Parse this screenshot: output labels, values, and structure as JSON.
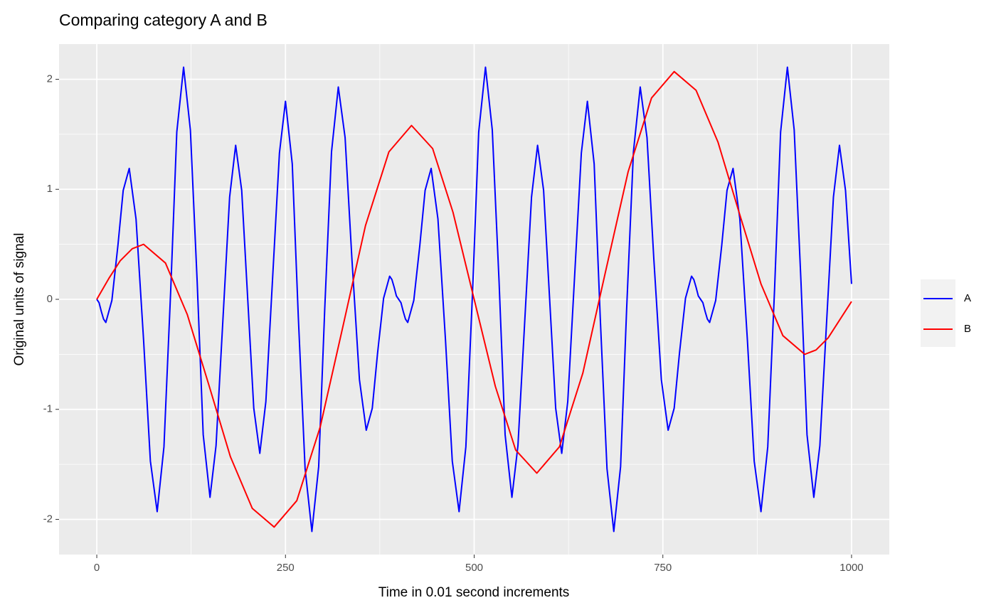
{
  "chart_data": {
    "type": "line",
    "title": "Comparing category A and B",
    "xlabel": "Time in 0.01 second increments",
    "ylabel": "Original units of signal",
    "xlim": [
      -50,
      1050
    ],
    "xticks": [
      0,
      250,
      500,
      750,
      1000
    ],
    "ylim": [
      -2.32,
      2.32
    ],
    "yticks": [
      -2,
      -1,
      0,
      1,
      2
    ],
    "grid": true,
    "legend": "right",
    "series": [
      {
        "name": "A",
        "color": "#0000ff",
        "x": [
          0,
          3,
          6,
          9,
          12,
          20,
          28,
          35,
          43,
          52,
          62,
          71,
          80,
          89,
          98,
          106,
          115,
          124,
          133,
          141,
          150,
          158,
          167,
          176,
          184,
          192,
          200,
          208,
          216,
          224,
          233,
          242,
          250,
          259,
          267,
          276,
          285,
          294,
          302,
          311,
          320,
          329,
          338,
          348,
          357,
          365,
          372,
          380,
          388,
          391,
          394,
          397,
          400,
          403,
          406,
          409,
          412,
          420,
          428,
          435,
          443,
          452,
          462,
          471,
          480,
          489,
          498,
          506,
          515,
          524,
          533,
          541,
          550,
          558,
          567,
          576,
          584,
          592,
          600,
          608,
          616,
          624,
          633,
          642,
          650,
          659,
          667,
          676,
          685,
          694,
          702,
          711,
          720,
          729,
          738,
          748,
          757,
          765,
          772,
          780,
          788,
          791,
          794,
          797,
          800,
          803,
          806,
          809,
          812,
          820,
          828,
          835,
          843,
          852,
          862,
          871,
          880,
          889,
          898,
          906,
          915,
          924,
          933,
          941,
          950,
          958,
          967,
          976,
          984,
          992,
          1000
        ],
        "values": [
          0,
          -0.03,
          -0.11,
          -0.18,
          -0.21,
          -0.01,
          0.49,
          0.99,
          1.19,
          0.73,
          -0.37,
          -1.47,
          -1.93,
          -1.34,
          0.09,
          1.52,
          2.11,
          1.54,
          0.16,
          -1.23,
          -1.8,
          -1.33,
          -0.2,
          0.93,
          1.4,
          0.99,
          0,
          -0.99,
          -1.4,
          -0.93,
          0.2,
          1.33,
          1.8,
          1.23,
          -0.16,
          -1.54,
          -2.11,
          -1.52,
          -0.09,
          1.34,
          1.93,
          1.47,
          0.37,
          -0.73,
          -1.19,
          -0.99,
          -0.49,
          0.01,
          0.21,
          0.18,
          0.11,
          0.03,
          0,
          -0.03,
          -0.11,
          -0.18,
          -0.21,
          -0.01,
          0.49,
          0.99,
          1.19,
          0.73,
          -0.37,
          -1.47,
          -1.93,
          -1.34,
          0.09,
          1.52,
          2.11,
          1.54,
          0.16,
          -1.23,
          -1.8,
          -1.33,
          -0.2,
          0.93,
          1.4,
          0.99,
          0,
          -0.99,
          -1.4,
          -0.93,
          0.2,
          1.33,
          1.8,
          1.23,
          -0.16,
          -1.54,
          -2.11,
          -1.52,
          -0.09,
          1.34,
          1.93,
          1.47,
          0.37,
          -0.73,
          -1.19,
          -0.99,
          -0.49,
          0.01,
          0.21,
          0.18,
          0.11,
          0.03,
          0,
          -0.03,
          -0.11,
          -0.18,
          -0.21,
          -0.01,
          0.49,
          0.99,
          1.19,
          0.73,
          -0.37,
          -1.47,
          -1.93,
          -1.34,
          0.09,
          1.52,
          2.11,
          1.54,
          0.16,
          -1.23,
          -1.8,
          -1.33,
          -0.2,
          0.93,
          1.4,
          0.99,
          0.14
        ]
      },
      {
        "name": "B",
        "color": "#ff0000",
        "x": [
          0,
          16,
          31,
          47,
          62,
          91,
          120,
          149,
          177,
          206,
          235,
          265,
          296,
          326,
          356,
          387,
          417,
          445,
          472,
          500,
          528,
          555,
          583,
          613,
          644,
          674,
          704,
          735,
          765,
          794,
          823,
          851,
          880,
          909,
          938,
          953,
          969,
          984,
          1000
        ],
        "values": [
          0,
          0.19,
          0.35,
          0.46,
          0.5,
          0.33,
          -0.14,
          -0.79,
          -1.43,
          -1.9,
          -2.07,
          -1.83,
          -1.16,
          -0.25,
          0.67,
          1.34,
          1.58,
          1.37,
          0.79,
          0,
          -0.79,
          -1.37,
          -1.58,
          -1.34,
          -0.67,
          0.25,
          1.16,
          1.83,
          2.07,
          1.9,
          1.43,
          0.79,
          0.14,
          -0.33,
          -0.5,
          -0.46,
          -0.35,
          -0.19,
          -0.02
        ]
      }
    ]
  }
}
